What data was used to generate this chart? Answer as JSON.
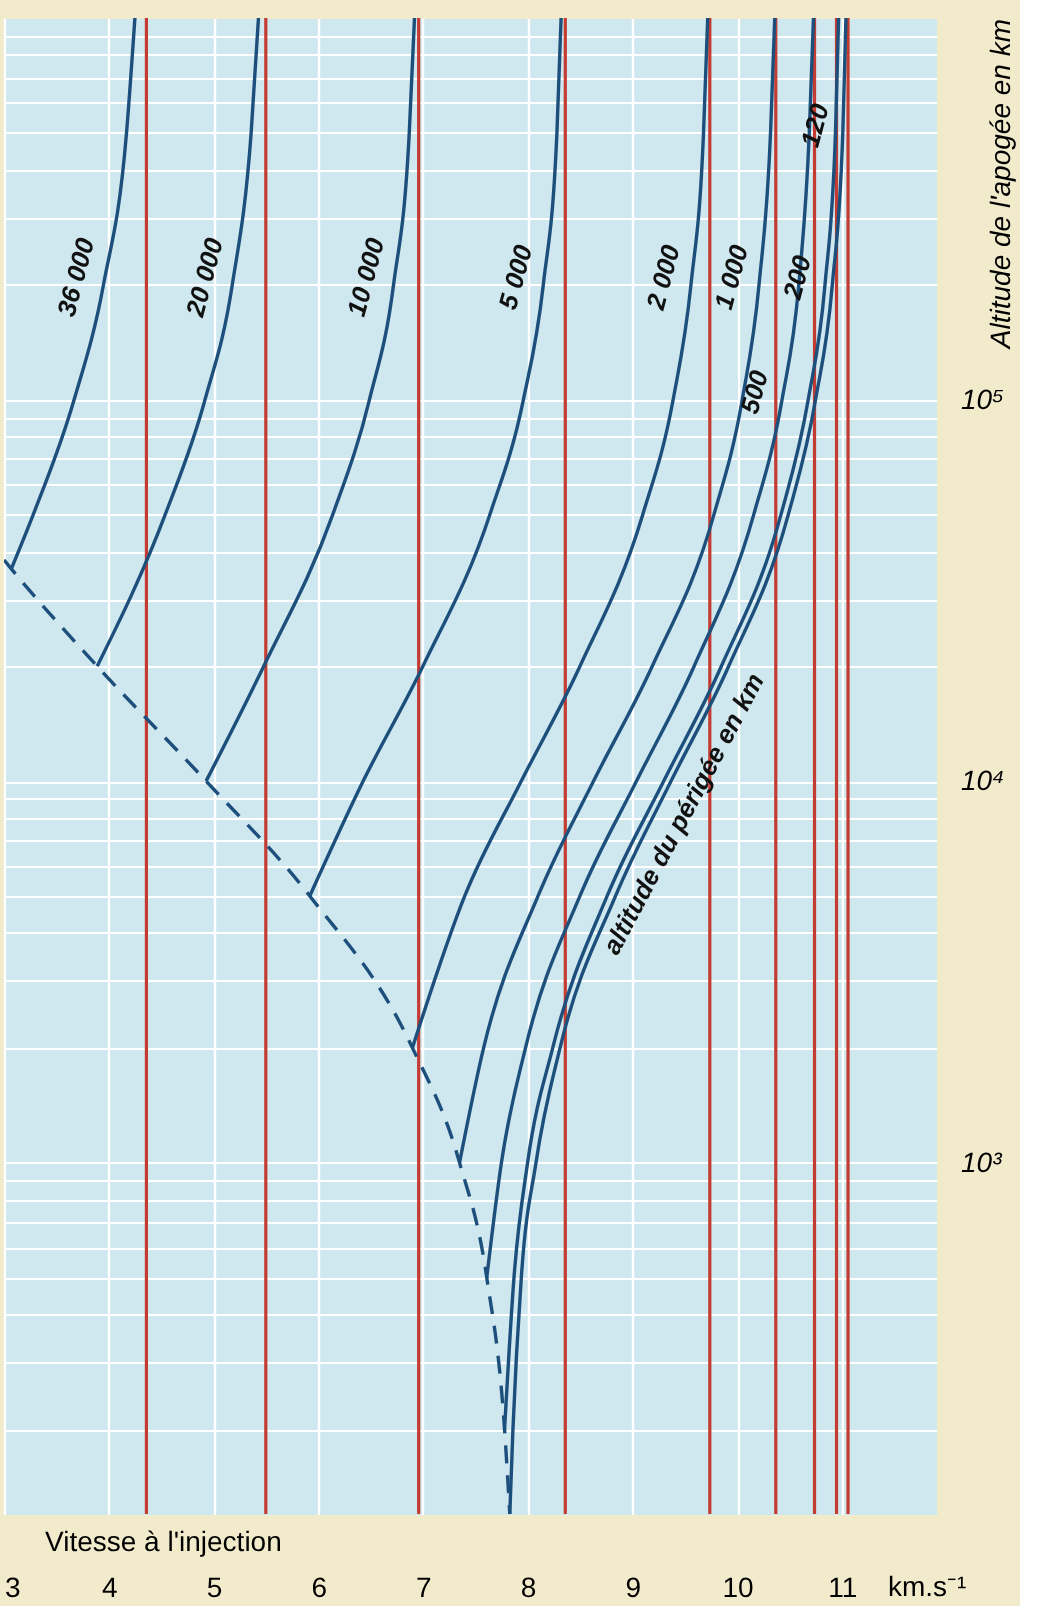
{
  "chart_data": {
    "type": "line",
    "xlabel": "Vitesse à l'injection",
    "ylabel": "Altitude de l'apogée en km",
    "annotations": [
      "altitude du périgée en km",
      "km.s⁻¹"
    ],
    "xlim": [
      3,
      11.9
    ],
    "xticks": [
      3,
      4,
      5,
      6,
      7,
      8,
      9,
      10,
      11
    ],
    "ylim": [
      120,
      1000000
    ],
    "yticks": [
      {
        "value": 200,
        "label": null
      },
      {
        "value": 300,
        "label": null
      },
      {
        "value": 400,
        "label": null
      },
      {
        "value": 500,
        "label": null
      },
      {
        "value": 600,
        "label": null
      },
      {
        "value": 700,
        "label": null
      },
      {
        "value": 800,
        "label": null
      },
      {
        "value": 900,
        "label": null
      },
      {
        "value": 1000,
        "label": "10³"
      },
      {
        "value": 2000,
        "label": null
      },
      {
        "value": 3000,
        "label": null
      },
      {
        "value": 4000,
        "label": null
      },
      {
        "value": 5000,
        "label": null
      },
      {
        "value": 6000,
        "label": null
      },
      {
        "value": 7000,
        "label": null
      },
      {
        "value": 8000,
        "label": null
      },
      {
        "value": 9000,
        "label": null
      },
      {
        "value": 10000,
        "label": "10⁴"
      },
      {
        "value": 20000,
        "label": null
      },
      {
        "value": 30000,
        "label": null
      },
      {
        "value": 40000,
        "label": null
      },
      {
        "value": 50000,
        "label": null
      },
      {
        "value": 60000,
        "label": null
      },
      {
        "value": 70000,
        "label": null
      },
      {
        "value": 80000,
        "label": null
      },
      {
        "value": 90000,
        "label": null
      },
      {
        "value": 100000,
        "label": "10⁵"
      },
      {
        "value": 200000,
        "label": null
      },
      {
        "value": 300000,
        "label": null
      },
      {
        "value": 400000,
        "label": null
      },
      {
        "value": 500000,
        "label": null
      },
      {
        "value": 600000,
        "label": null
      },
      {
        "value": 700000,
        "label": null
      },
      {
        "value": 800000,
        "label": null
      },
      {
        "value": 900000,
        "label": null
      }
    ],
    "log": "y",
    "grid": true,
    "legend": false,
    "marker": "none",
    "line_style": "solid",
    "series": [
      {
        "name": "36 000",
        "color": "#1d4f7c",
        "x": [
          3.07,
          3.28,
          3.67,
          3.95,
          4.17,
          4.25
        ],
        "values": [
          36000,
          50000,
          100000,
          200000,
          500000,
          1000000
        ]
      },
      {
        "name": "20 000",
        "color": "#1d4f7c",
        "x": [
          3.89,
          4.54,
          4.92,
          5.18,
          5.36,
          5.43
        ],
        "values": [
          20000,
          50000,
          100000,
          200000,
          500000,
          1000000
        ]
      },
      {
        "name": "10 000",
        "color": "#1d4f7c",
        "x": [
          4.93,
          5.48,
          6.14,
          6.49,
          6.72,
          6.87,
          6.92
        ],
        "values": [
          10000,
          20000,
          50000,
          100000,
          200000,
          500000,
          1000000
        ]
      },
      {
        "name": "5 000",
        "color": "#1d4f7c",
        "x": [
          5.92,
          6.43,
          7.0,
          7.64,
          7.96,
          8.15,
          8.28,
          8.32
        ],
        "values": [
          5000,
          10000,
          20000,
          50000,
          100000,
          200000,
          500000,
          1000000
        ]
      },
      {
        "name": "2 000",
        "color": "#1d4f7c",
        "x": [
          6.9,
          7.4,
          7.94,
          8.5,
          9.1,
          9.39,
          9.56,
          9.68,
          9.72
        ],
        "values": [
          2000,
          5000,
          10000,
          20000,
          50000,
          100000,
          200000,
          500000,
          1000000
        ]
      },
      {
        "name": "1 000",
        "color": "#1d4f7c",
        "x": [
          7.35,
          7.58,
          8.1,
          8.63,
          9.19,
          9.78,
          10.05,
          10.21,
          10.32,
          10.36
        ],
        "values": [
          1000,
          2000,
          5000,
          10000,
          20000,
          50000,
          100000,
          200000,
          500000,
          1000000
        ]
      },
      {
        "name": "500",
        "color": "#1d4f7c",
        "x": [
          7.61,
          7.75,
          7.98,
          8.5,
          9.04,
          9.59,
          10.16,
          10.43,
          10.59,
          10.69,
          10.73
        ],
        "values": [
          500,
          1000,
          2000,
          5000,
          10000,
          20000,
          50000,
          100000,
          200000,
          500000,
          1000000
        ]
      },
      {
        "name": "200",
        "color": "#1d4f7c",
        "x": [
          7.78,
          7.87,
          8.0,
          8.24,
          8.76,
          9.3,
          9.85,
          10.42,
          10.68,
          10.84,
          10.94,
          10.97
        ],
        "values": [
          200,
          500,
          1000,
          2000,
          5000,
          10000,
          20000,
          50000,
          100000,
          200000,
          500000,
          1000000
        ]
      },
      {
        "name": "120",
        "color": "#1d4f7c",
        "x": [
          7.83,
          7.86,
          7.94,
          8.08,
          8.31,
          8.84,
          9.37,
          9.92,
          10.49,
          10.75,
          10.91,
          11.01,
          11.04
        ],
        "values": [
          120,
          200,
          500,
          1000,
          2000,
          5000,
          10000,
          20000,
          50000,
          100000,
          200000,
          500000,
          1000000
        ]
      },
      {
        "color": "#1d4f7c",
        "line_style": "dashed",
        "x": [
          3.0,
          3.07,
          3.89,
          4.93,
          5.92,
          6.9,
          7.35,
          7.61,
          7.78,
          7.83
        ],
        "values": [
          38000,
          36000,
          20000,
          10000,
          5000,
          2000,
          1000,
          500,
          200,
          120
        ]
      }
    ],
    "ref_lines": [
      {
        "axis": "x",
        "value": 4.36,
        "color": "#c43b32"
      },
      {
        "axis": "x",
        "value": 5.5,
        "color": "#c43b32"
      },
      {
        "axis": "x",
        "value": 6.96,
        "color": "#c43b32"
      },
      {
        "axis": "x",
        "value": 8.36,
        "color": "#c43b32"
      },
      {
        "axis": "x",
        "value": 9.74,
        "color": "#c43b32"
      },
      {
        "axis": "x",
        "value": 10.37,
        "color": "#c43b32"
      },
      {
        "axis": "x",
        "value": 10.74,
        "color": "#c43b32"
      },
      {
        "axis": "x",
        "value": 10.95,
        "color": "#c43b32"
      },
      {
        "axis": "x",
        "value": 11.06,
        "color": "#c43b32"
      }
    ]
  }
}
